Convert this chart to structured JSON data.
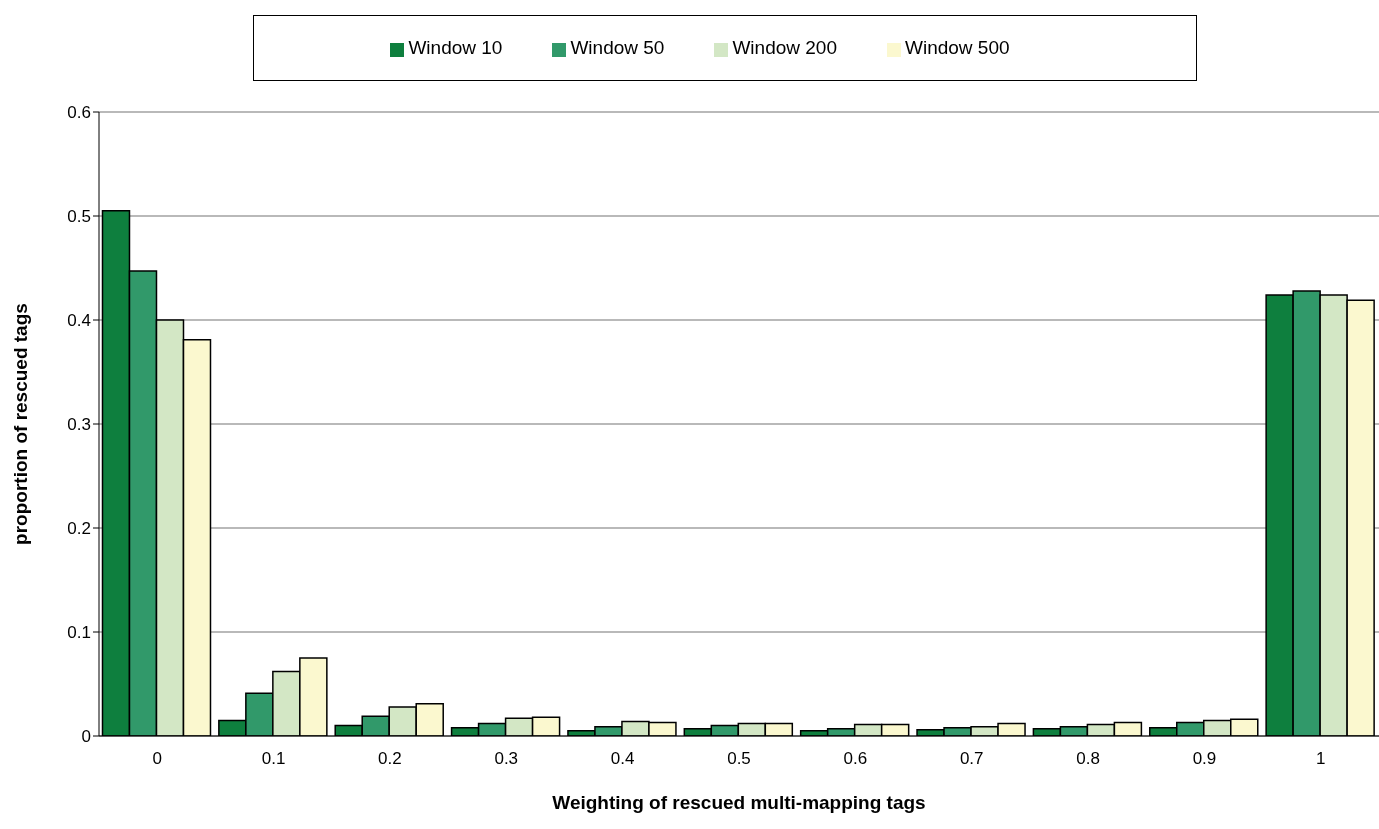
{
  "chart_data": {
    "type": "bar",
    "xlabel": "Weighting of rescued multi-mapping tags",
    "ylabel": "proportion of rescued tags",
    "categories": [
      "0",
      "0.1",
      "0.2",
      "0.3",
      "0.4",
      "0.5",
      "0.6",
      "0.7",
      "0.8",
      "0.9",
      "1"
    ],
    "series": [
      {
        "name": "Window 10",
        "color": "#0e7f3e",
        "values": [
          0.505,
          0.015,
          0.01,
          0.008,
          0.005,
          0.007,
          0.005,
          0.006,
          0.007,
          0.008,
          0.424
        ]
      },
      {
        "name": "Window 50",
        "color": "#31996a",
        "values": [
          0.447,
          0.041,
          0.019,
          0.012,
          0.009,
          0.01,
          0.007,
          0.008,
          0.009,
          0.013,
          0.428
        ]
      },
      {
        "name": "Window 200",
        "color": "#d3e7c5",
        "values": [
          0.4,
          0.062,
          0.028,
          0.017,
          0.014,
          0.012,
          0.011,
          0.009,
          0.011,
          0.015,
          0.424
        ]
      },
      {
        "name": "Window 500",
        "color": "#fbf8cf",
        "values": [
          0.381,
          0.075,
          0.031,
          0.018,
          0.013,
          0.012,
          0.011,
          0.012,
          0.013,
          0.016,
          0.419
        ]
      }
    ],
    "ylim": [
      0,
      0.6
    ],
    "yticks": [
      0,
      0.1,
      0.2,
      0.3,
      0.4,
      0.5,
      0.6
    ],
    "grid": "y",
    "legend": "top"
  }
}
